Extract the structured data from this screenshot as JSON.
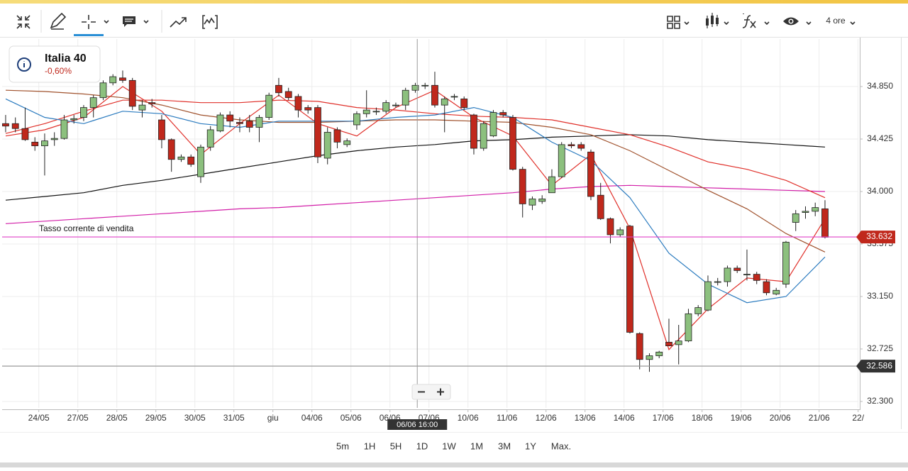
{
  "toolbar": {
    "interval": "4 ore"
  },
  "instrument": {
    "name": "Italia 40",
    "change": "-0,60%"
  },
  "timeframes": [
    "5m",
    "1H",
    "5H",
    "1D",
    "1W",
    "1M",
    "3M",
    "1Y",
    "Max."
  ],
  "chart_data": {
    "type": "candlestick",
    "up_color": "#8cc07e",
    "down_color": "#c0281c",
    "grid": true,
    "xlim": [
      -0.36,
      87.42
    ],
    "ylim": [
      32.248,
      35.235
    ],
    "yticks": [
      {
        "value": 34.85,
        "label": "34.850"
      },
      {
        "value": 34.425,
        "label": "34.425"
      },
      {
        "value": 34.0,
        "label": "34.000"
      },
      {
        "value": 33.575,
        "label": "33.575"
      },
      {
        "value": 33.15,
        "label": "33.150"
      },
      {
        "value": 32.725,
        "label": "32.725"
      },
      {
        "value": 32.3,
        "label": "32.300"
      }
    ],
    "xticks": [
      {
        "value": 3.4,
        "label": "24/05"
      },
      {
        "value": 7.4,
        "label": "27/05"
      },
      {
        "value": 11.4,
        "label": "28/05"
      },
      {
        "value": 15.4,
        "label": "29/05"
      },
      {
        "value": 19.4,
        "label": "30/05"
      },
      {
        "value": 23.4,
        "label": "31/05"
      },
      {
        "value": 27.4,
        "label": "giu"
      },
      {
        "value": 31.4,
        "label": "04/06"
      },
      {
        "value": 35.4,
        "label": "05/06"
      },
      {
        "value": 39.4,
        "label": "06/06"
      },
      {
        "value": 43.4,
        "label": "07/06"
      },
      {
        "value": 47.4,
        "label": "10/06"
      },
      {
        "value": 51.4,
        "label": "11/06"
      },
      {
        "value": 55.4,
        "label": "12/06"
      },
      {
        "value": 59.4,
        "label": "13/06"
      },
      {
        "value": 63.4,
        "label": "14/06"
      },
      {
        "value": 67.4,
        "label": "17/06"
      },
      {
        "value": 71.4,
        "label": "18/06"
      },
      {
        "value": 75.4,
        "label": "19/06"
      },
      {
        "value": 79.4,
        "label": "20/06"
      },
      {
        "value": 83.4,
        "label": "21/06"
      },
      {
        "value": 87.4,
        "label": "22/"
      }
    ],
    "open": [
      34.55,
      34.55,
      34.51,
      34.4,
      34.37,
      34.42,
      34.43,
      34.58,
      34.6,
      34.68,
      34.76,
      34.88,
      34.92,
      34.9,
      34.66,
      34.72,
      34.58,
      34.42,
      34.26,
      34.28,
      34.12,
      34.36,
      34.49,
      34.62,
      34.56,
      34.57,
      34.52,
      34.6,
      34.86,
      34.81,
      34.77,
      34.68,
      34.68,
      34.27,
      34.5,
      34.38,
      34.54,
      34.63,
      34.65,
      34.65,
      34.7,
      34.7,
      34.82,
      34.86,
      34.86,
      34.7,
      34.77,
      34.75,
      34.62,
      34.35,
      34.45,
      34.64,
      34.6,
      34.18,
      33.89,
      33.92,
      33.99,
      34.12,
      34.38,
      34.38,
      34.32,
      33.97,
      33.78,
      33.65,
      33.72,
      32.85,
      32.64,
      32.67,
      32.78,
      32.76,
      32.79,
      33.01,
      33.04,
      33.27,
      33.27,
      33.38,
      33.33,
      33.33,
      33.27,
      33.17,
      33.25,
      33.75,
      33.83,
      33.84,
      33.86
    ],
    "high": [
      34.62,
      34.6,
      34.68,
      34.44,
      34.47,
      34.48,
      34.62,
      34.62,
      34.7,
      34.78,
      34.9,
      34.95,
      34.98,
      34.92,
      34.74,
      34.75,
      34.62,
      34.43,
      34.3,
      34.3,
      34.38,
      34.53,
      34.64,
      34.65,
      34.6,
      34.62,
      34.62,
      34.8,
      34.92,
      34.84,
      34.79,
      34.7,
      34.7,
      34.52,
      34.52,
      34.43,
      34.65,
      34.82,
      34.68,
      34.74,
      34.72,
      34.84,
      34.88,
      34.88,
      34.97,
      34.77,
      34.79,
      34.77,
      34.63,
      34.57,
      34.66,
      34.66,
      34.62,
      34.2,
      33.96,
      33.97,
      34.18,
      34.4,
      34.4,
      34.4,
      34.34,
      34.07,
      33.79,
      33.71,
      33.73,
      32.86,
      32.69,
      32.71,
      32.97,
      32.92,
      33.05,
      33.08,
      33.32,
      33.3,
      33.4,
      33.4,
      33.53,
      33.35,
      33.29,
      33.22,
      33.6,
      33.85,
      33.88,
      33.91,
      33.93
    ],
    "low": [
      34.48,
      34.48,
      34.41,
      34.33,
      34.13,
      34.37,
      34.42,
      34.55,
      34.57,
      34.6,
      34.74,
      34.86,
      34.88,
      34.66,
      34.6,
      34.68,
      34.35,
      34.16,
      34.24,
      34.2,
      34.07,
      34.33,
      34.48,
      34.52,
      34.48,
      34.48,
      34.4,
      34.58,
      34.77,
      34.74,
      34.6,
      34.63,
      34.23,
      34.22,
      34.35,
      34.36,
      34.5,
      34.6,
      34.62,
      34.63,
      34.68,
      34.66,
      34.8,
      34.83,
      34.68,
      34.48,
      34.74,
      34.66,
      34.3,
      34.33,
      34.44,
      34.6,
      34.17,
      33.79,
      33.85,
      33.9,
      33.99,
      34.11,
      34.35,
      34.33,
      33.93,
      33.77,
      33.58,
      33.63,
      32.85,
      32.56,
      32.54,
      32.65,
      32.75,
      32.6,
      32.78,
      32.99,
      33.03,
      33.24,
      33.23,
      33.34,
      33.28,
      33.25,
      33.16,
      33.16,
      33.22,
      33.68,
      33.78,
      33.8,
      33.62
    ],
    "close": [
      34.53,
      34.51,
      34.42,
      34.37,
      34.41,
      34.43,
      34.58,
      34.59,
      34.68,
      34.76,
      34.88,
      34.93,
      34.9,
      34.69,
      34.7,
      34.71,
      34.42,
      34.26,
      34.28,
      34.22,
      34.36,
      34.5,
      34.62,
      34.57,
      34.55,
      34.52,
      34.6,
      34.78,
      34.8,
      34.76,
      34.66,
      34.66,
      34.28,
      34.48,
      34.4,
      34.41,
      34.63,
      34.66,
      34.65,
      34.72,
      34.7,
      34.82,
      34.86,
      34.86,
      34.7,
      34.75,
      34.77,
      34.68,
      34.35,
      34.55,
      34.64,
      34.62,
      34.18,
      33.9,
      33.94,
      33.94,
      34.12,
      34.38,
      34.37,
      34.35,
      33.96,
      33.78,
      33.65,
      33.69,
      32.86,
      32.64,
      32.67,
      32.7,
      32.75,
      32.79,
      33.01,
      33.06,
      33.27,
      33.27,
      33.38,
      33.36,
      33.33,
      33.28,
      33.18,
      33.2,
      33.59,
      33.82,
      33.84,
      33.87,
      33.63
    ],
    "line_x": [
      0,
      4,
      8,
      12,
      16,
      20,
      24,
      28,
      32,
      36,
      40,
      44,
      48,
      52,
      56,
      60,
      64,
      68,
      72,
      76,
      80,
      84
    ],
    "lines": [
      {
        "color": "#111111",
        "values": [
          33.93,
          33.96,
          33.99,
          34.05,
          34.09,
          34.14,
          34.19,
          34.24,
          34.29,
          34.33,
          34.36,
          34.38,
          34.41,
          34.42,
          34.44,
          34.45,
          34.46,
          34.45,
          34.42,
          34.4,
          34.38,
          34.36
        ]
      },
      {
        "color": "#d21ea8",
        "values": [
          33.74,
          33.76,
          33.78,
          33.8,
          33.82,
          33.84,
          33.86,
          33.87,
          33.89,
          33.91,
          33.93,
          33.95,
          33.97,
          33.99,
          34.02,
          34.04,
          34.05,
          34.04,
          34.03,
          34.02,
          34.01,
          34.0
        ]
      },
      {
        "color": "#a0522d",
        "values": [
          34.82,
          34.81,
          34.79,
          34.76,
          34.7,
          34.62,
          34.58,
          34.56,
          34.56,
          34.57,
          34.58,
          34.58,
          34.57,
          34.56,
          34.52,
          34.46,
          34.33,
          34.17,
          34.01,
          33.86,
          33.66,
          33.51
        ]
      },
      {
        "color": "#e0302a",
        "values": [
          34.47,
          34.55,
          34.65,
          34.74,
          34.74,
          34.72,
          34.72,
          34.74,
          34.73,
          34.68,
          34.66,
          34.63,
          34.61,
          34.6,
          34.58,
          34.52,
          34.46,
          34.36,
          34.24,
          34.18,
          34.09,
          33.95
        ]
      },
      {
        "color": "#e0302a",
        "values": [
          34.45,
          34.5,
          34.6,
          34.85,
          34.65,
          34.3,
          34.55,
          34.78,
          34.55,
          34.45,
          34.68,
          34.82,
          34.6,
          34.45,
          34.05,
          34.3,
          33.7,
          32.72,
          33.05,
          33.3,
          33.27,
          33.78
        ]
      },
      {
        "color": "#2b7bbf",
        "values": [
          34.75,
          34.6,
          34.55,
          34.65,
          34.63,
          34.55,
          34.52,
          34.57,
          34.57,
          34.57,
          34.6,
          34.62,
          34.68,
          34.6,
          34.4,
          34.25,
          33.95,
          33.5,
          33.25,
          33.1,
          33.15,
          33.47
        ]
      }
    ],
    "sell_rate": {
      "label": "Tasso corrente di vendita",
      "value": 33.632,
      "color": "#e040c8",
      "tag_color": "#c0281c"
    },
    "reference_line": {
      "value": 32.586,
      "color": "#9a9a9a",
      "tag_color": "#333333"
    },
    "crosshair": {
      "x": 42.2,
      "label": "06/06 16:00"
    }
  }
}
